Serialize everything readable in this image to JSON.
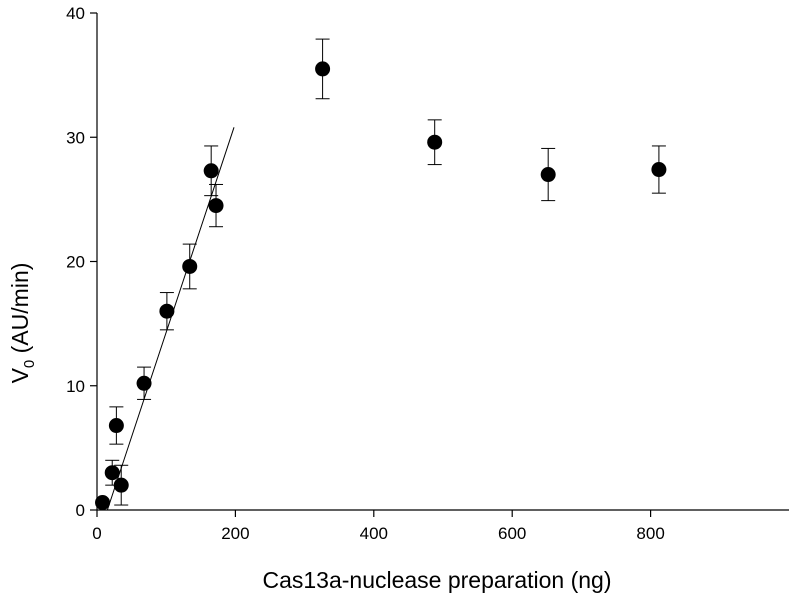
{
  "chart_data": {
    "type": "scatter",
    "title": "",
    "xlabel": "Cas13a-nuclease preparation (ng)",
    "ylabel_main": "V",
    "ylabel_sub": "0",
    "ylabel_rest": " (AU/min)",
    "xlim": [
      0,
      1000
    ],
    "ylim": [
      0,
      40
    ],
    "x_ticks": [
      0,
      200,
      400,
      600,
      800
    ],
    "y_ticks": [
      0,
      10,
      20,
      30,
      40
    ],
    "grid": false,
    "legend": "none",
    "marker_color": "#000000",
    "points": [
      {
        "x": 8,
        "y": 0.6,
        "err": 0.2
      },
      {
        "x": 22,
        "y": 3.0,
        "err": 1.0
      },
      {
        "x": 28,
        "y": 6.8,
        "err": 1.5
      },
      {
        "x": 35,
        "y": 2.0,
        "err": 1.6
      },
      {
        "x": 68,
        "y": 10.2,
        "err": 1.3
      },
      {
        "x": 101,
        "y": 16.0,
        "err": 1.5
      },
      {
        "x": 134,
        "y": 19.6,
        "err": 1.8
      },
      {
        "x": 165,
        "y": 27.3,
        "err": 2.0
      },
      {
        "x": 172,
        "y": 24.5,
        "err": 1.7
      },
      {
        "x": 326,
        "y": 35.5,
        "err": 2.4
      },
      {
        "x": 488,
        "y": 29.6,
        "err": 1.8
      },
      {
        "x": 652,
        "y": 27.0,
        "err": 2.1
      },
      {
        "x": 812,
        "y": 27.4,
        "err": 1.9
      }
    ],
    "fit_line": {
      "x": [
        15,
        198
      ],
      "y": [
        0,
        30.8
      ]
    }
  }
}
